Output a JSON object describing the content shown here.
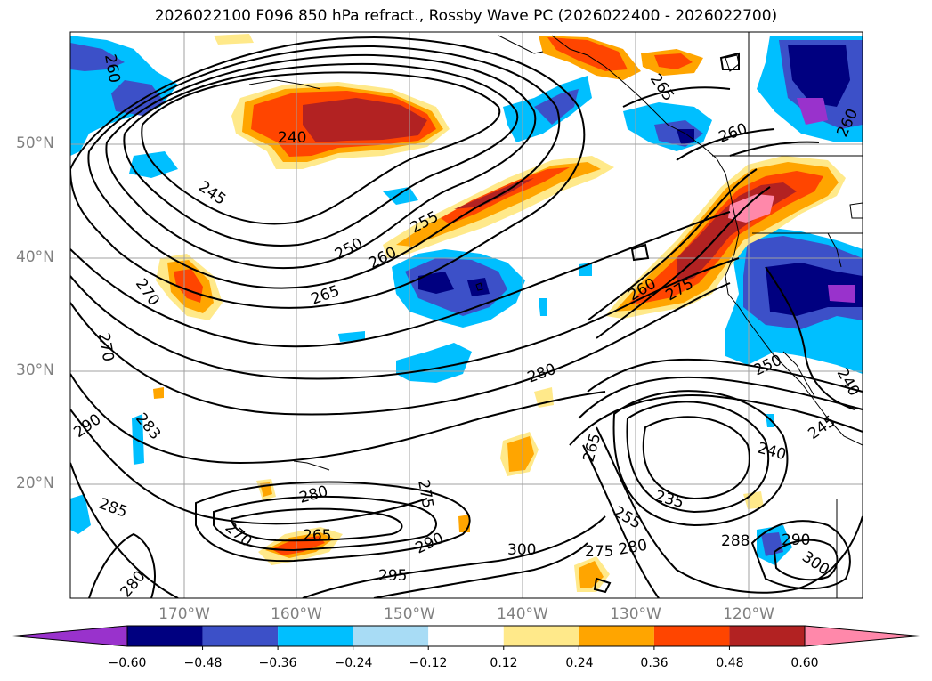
{
  "title": "2026022100 F096 850 hPa refract., Rossby Wave PC (2026022400 - 2026022700)",
  "lat_labels": [
    "50°N",
    "40°N",
    "30°N",
    "20°N"
  ],
  "lon_labels": [
    "170°W",
    "160°W",
    "150°W",
    "140°W",
    "130°W",
    "120°W"
  ],
  "colorbar": {
    "colors": [
      "#9932cc",
      "#000080",
      "#3c50c8",
      "#00bfff",
      "#a8dcf5",
      "#ffffff",
      "#ffe98a",
      "#ffa500",
      "#ff4500",
      "#b22222",
      "#ff88aa"
    ],
    "tick_labels": [
      "−0.60",
      "−0.48",
      "−0.36",
      "−0.24",
      "−0.12",
      "0.12",
      "0.24",
      "0.36",
      "0.48",
      "0.60"
    ]
  },
  "contour_labels": [
    {
      "text": "260"
    },
    {
      "text": "240"
    },
    {
      "text": "245"
    },
    {
      "text": "255"
    },
    {
      "text": "250"
    },
    {
      "text": "260"
    },
    {
      "text": "265"
    },
    {
      "text": "270"
    },
    {
      "text": "270"
    },
    {
      "text": "290"
    },
    {
      "text": "283"
    },
    {
      "text": "285"
    },
    {
      "text": "280"
    },
    {
      "text": "280"
    },
    {
      "text": "275"
    },
    {
      "text": "265"
    },
    {
      "text": "270"
    },
    {
      "text": "290"
    },
    {
      "text": "295"
    },
    {
      "text": "300"
    },
    {
      "text": "280"
    },
    {
      "text": "275"
    },
    {
      "text": "265"
    },
    {
      "text": "255"
    },
    {
      "text": "235"
    },
    {
      "text": "240"
    },
    {
      "text": "245"
    },
    {
      "text": "250"
    },
    {
      "text": "260"
    },
    {
      "text": "275"
    },
    {
      "text": "280"
    },
    {
      "text": "265"
    },
    {
      "text": "260"
    },
    {
      "text": "260"
    },
    {
      "text": "240"
    },
    {
      "text": "288"
    },
    {
      "text": "300"
    },
    {
      "text": "290"
    }
  ]
}
